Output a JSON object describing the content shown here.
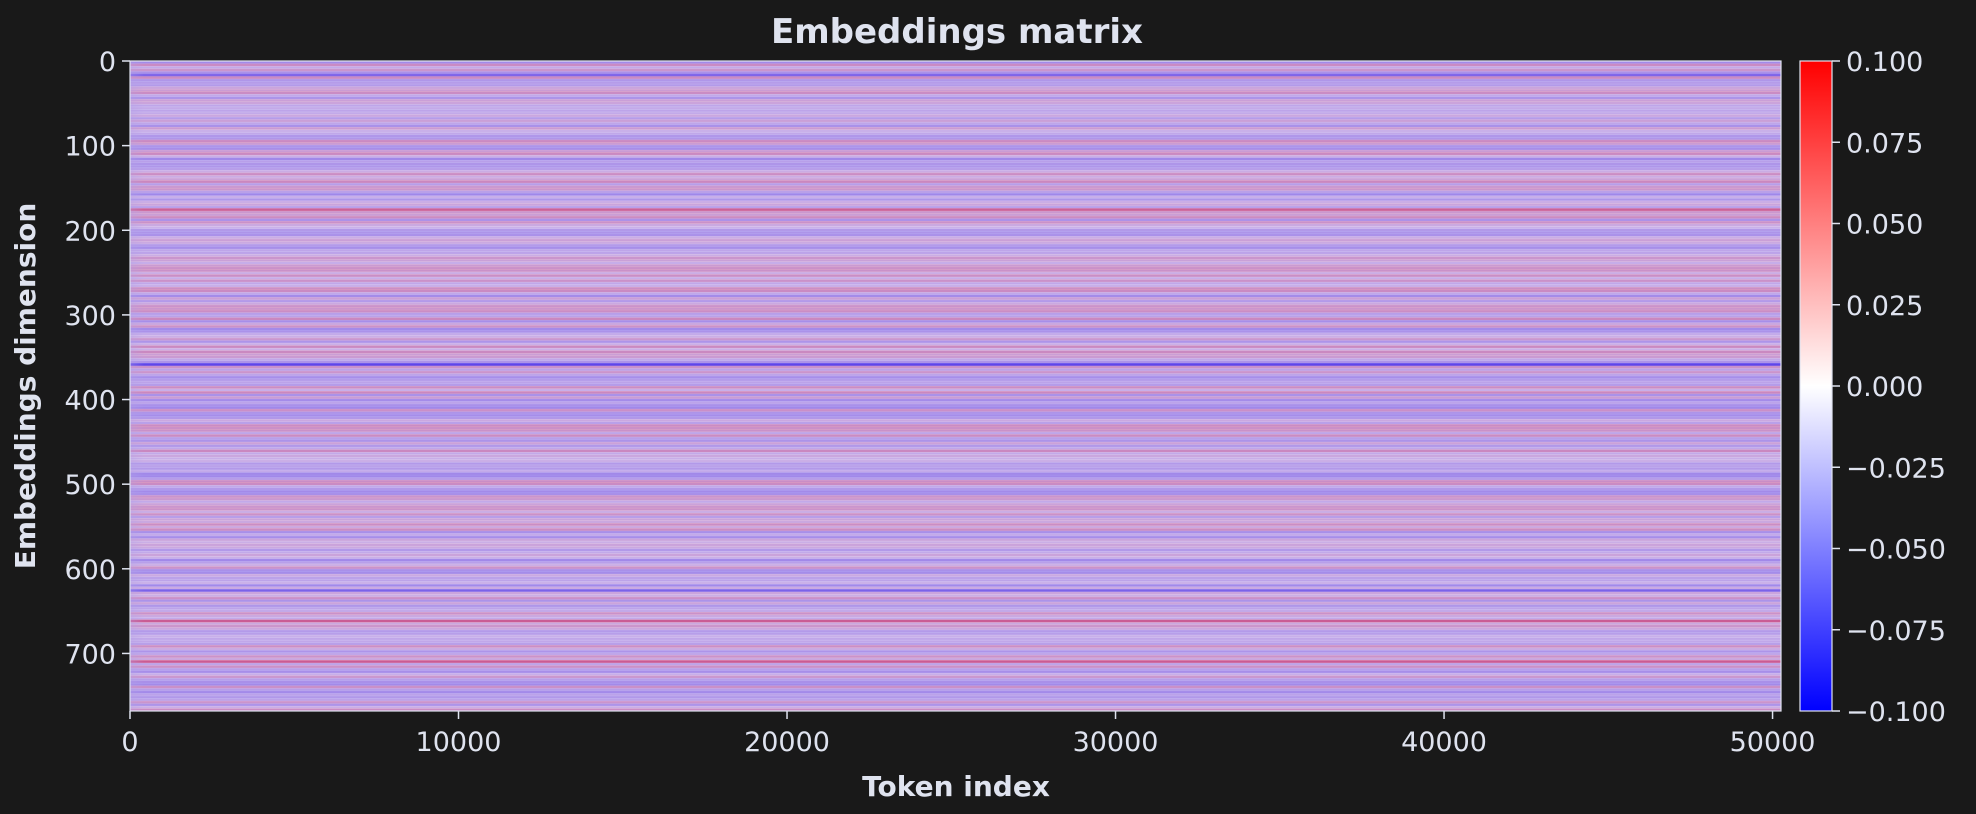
{
  "chart_data": {
    "type": "heatmap",
    "title": "Embeddings matrix",
    "xlabel": "Token index",
    "ylabel": "Embeddings dimension",
    "x_ticks": [
      0,
      10000,
      20000,
      30000,
      40000,
      50000
    ],
    "y_ticks": [
      0,
      100,
      200,
      300,
      400,
      500,
      600,
      700
    ],
    "x_tick_labels": [
      "0",
      "10000",
      "20000",
      "30000",
      "40000",
      "50000"
    ],
    "y_tick_labels": [
      "0",
      "100",
      "200",
      "300",
      "400",
      "500",
      "600",
      "700"
    ],
    "xlim": [
      0,
      50257
    ],
    "ylim": [
      0,
      768
    ],
    "colormap": "bwr",
    "colormap_stops": [
      "#0000ff",
      "#ffffff",
      "#ff0000"
    ],
    "color_range": [
      -0.1,
      0.1
    ],
    "colorbar_ticks": [
      0.1,
      0.075,
      0.05,
      0.025,
      0.0,
      -0.025,
      -0.05,
      -0.075,
      -0.1
    ],
    "colorbar_tick_labels": [
      "0.100",
      "0.075",
      "0.050",
      "0.025",
      "0.000",
      "−0.025",
      "−0.050",
      "−0.075",
      "−0.100"
    ],
    "colorbar_position": "right",
    "grid": false,
    "colors": {
      "background": "#191919",
      "text": "#dfe3ef",
      "axis": "#dfe3ef",
      "dominant_fill": "#8c4fd2"
    }
  }
}
